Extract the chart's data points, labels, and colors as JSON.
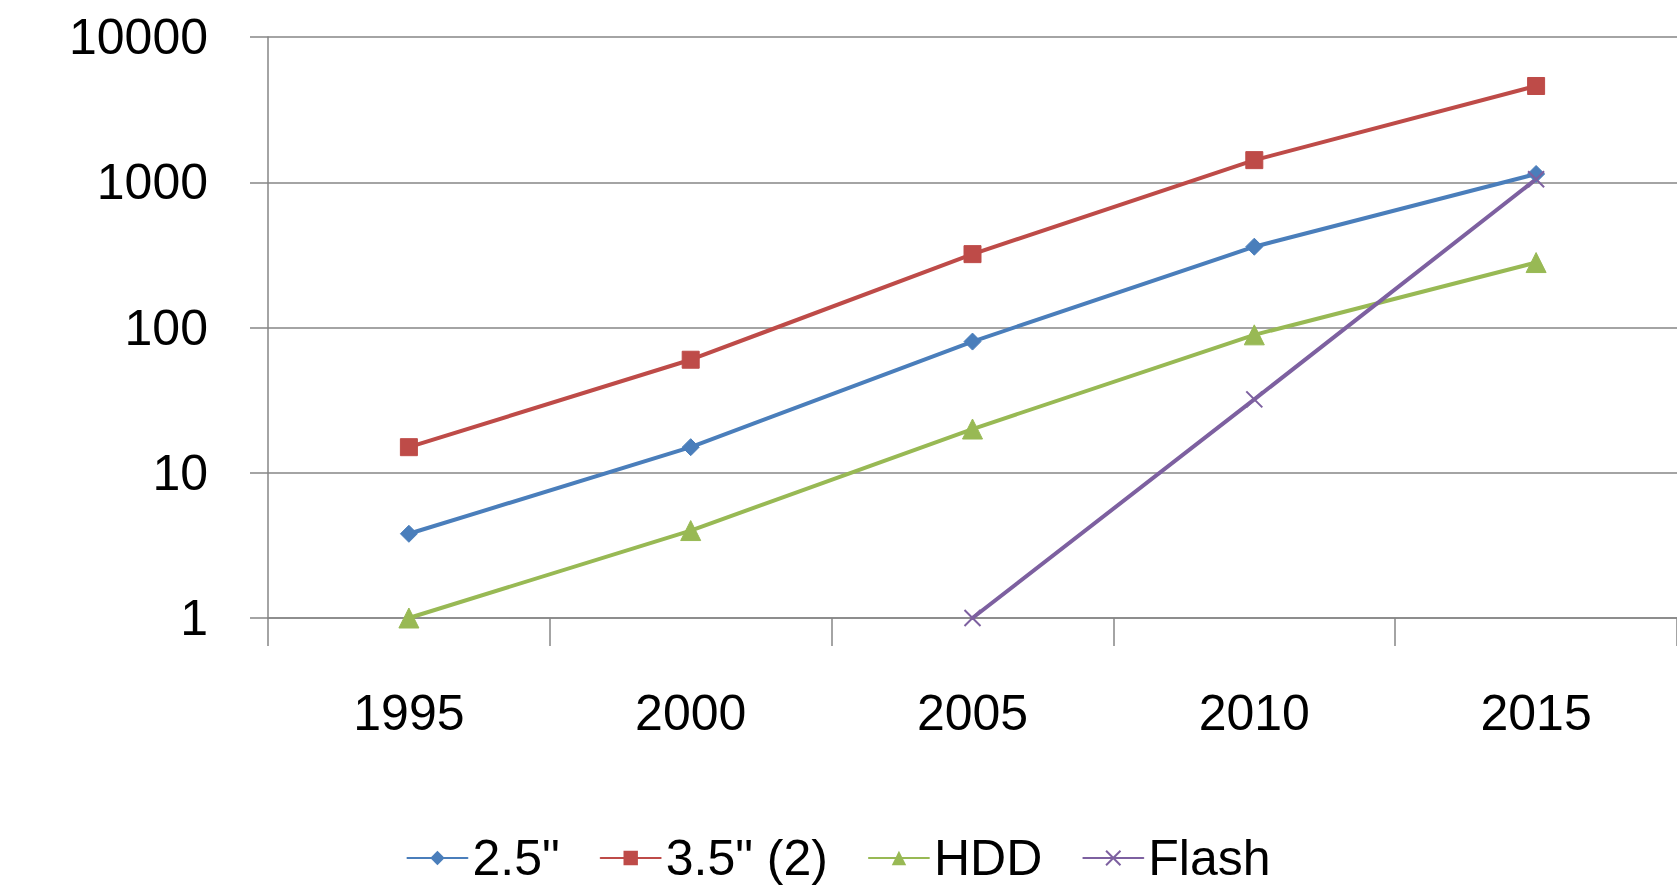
{
  "chart_data": {
    "type": "line",
    "categories": [
      "1995",
      "2000",
      "2005",
      "2010",
      "2015"
    ],
    "series": [
      {
        "name": "2.5\"",
        "color": "#4a7ebb",
        "marker": "diamond",
        "values": [
          3.8,
          15,
          80,
          360,
          1140
        ]
      },
      {
        "name": "3.5\" (2)",
        "color": "#be4b48",
        "marker": "square",
        "values": [
          15,
          60,
          320,
          1420,
          4600
        ]
      },
      {
        "name": "HDD",
        "color": "#98b954",
        "marker": "triangle",
        "values": [
          1,
          4,
          20,
          89,
          280
        ]
      },
      {
        "name": "Flash",
        "color": "#7d60a0",
        "marker": "cross",
        "values": [
          null,
          null,
          1,
          32,
          1050
        ]
      }
    ],
    "log": "y",
    "ylim": [
      1,
      10000
    ],
    "yticks": [
      1,
      10,
      100,
      1000,
      10000
    ],
    "grid": "y",
    "legend": "bottom",
    "line_style": "solid"
  }
}
